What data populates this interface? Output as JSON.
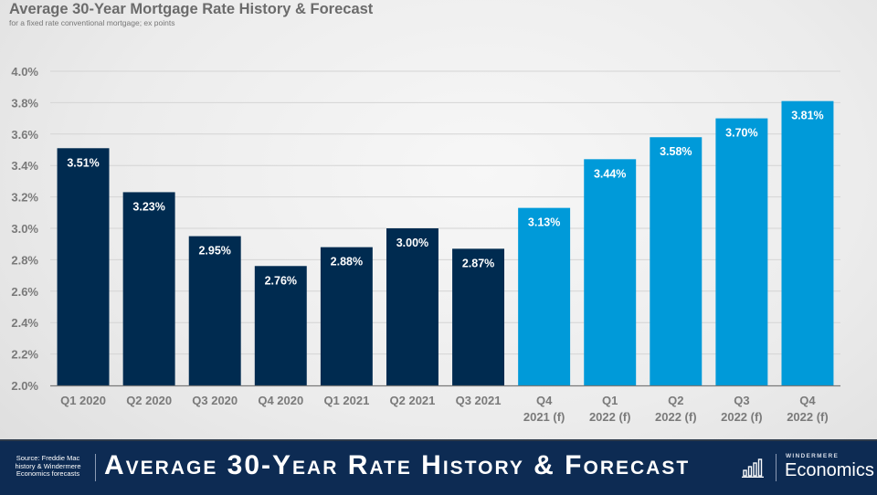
{
  "header": {
    "title": "Average 30-Year Mortgage Rate History & Forecast",
    "subtitle": "for a fixed rate conventional mortgage; ex points"
  },
  "footer": {
    "source": "Source: Freddie Mac history & Windermere Economics forecasts",
    "banner": "Average 30-Year Rate History & Forecast",
    "banner_icon": "bar-chart-icon",
    "brand_top": "WINDERMERE",
    "brand_bottom": "Economics"
  },
  "colors": {
    "history": "#002b50",
    "forecast": "#009ad9",
    "footer_bg": "#0d2b53"
  },
  "chart_data": {
    "type": "bar",
    "title": "Average 30-Year Mortgage Rate History & Forecast",
    "subtitle": "for a fixed rate conventional mortgage; ex points",
    "xlabel": "",
    "ylabel": "",
    "ylim": [
      2.0,
      4.0
    ],
    "yticks": [
      2.0,
      2.2,
      2.4,
      2.6,
      2.8,
      3.0,
      3.2,
      3.4,
      3.6,
      3.8,
      4.0
    ],
    "ytick_labels": [
      "2.0%",
      "2.2%",
      "2.4%",
      "2.6%",
      "2.8%",
      "3.0%",
      "3.2%",
      "3.4%",
      "3.6%",
      "3.8%",
      "4.0%"
    ],
    "grid": true,
    "legend": "none",
    "categories": [
      [
        "Q1 2020"
      ],
      [
        "Q2 2020"
      ],
      [
        "Q3 2020"
      ],
      [
        "Q4 2020"
      ],
      [
        "Q1 2021"
      ],
      [
        "Q2 2021"
      ],
      [
        "Q3 2021"
      ],
      [
        "Q4",
        "2021 (f)"
      ],
      [
        "Q1",
        "2022 (f)"
      ],
      [
        "Q2",
        "2022 (f)"
      ],
      [
        "Q3",
        "2022 (f)"
      ],
      [
        "Q4",
        "2022 (f)"
      ]
    ],
    "values": [
      3.51,
      3.23,
      2.95,
      2.76,
      2.88,
      3.0,
      2.87,
      3.13,
      3.44,
      3.58,
      3.7,
      3.81
    ],
    "data_labels": [
      "3.51%",
      "3.23%",
      "2.95%",
      "2.76%",
      "2.88%",
      "3.00%",
      "2.87%",
      "3.13%",
      "3.44%",
      "3.58%",
      "3.70%",
      "3.81%"
    ],
    "series_type": [
      "history",
      "history",
      "history",
      "history",
      "history",
      "history",
      "history",
      "forecast",
      "forecast",
      "forecast",
      "forecast",
      "forecast"
    ]
  }
}
